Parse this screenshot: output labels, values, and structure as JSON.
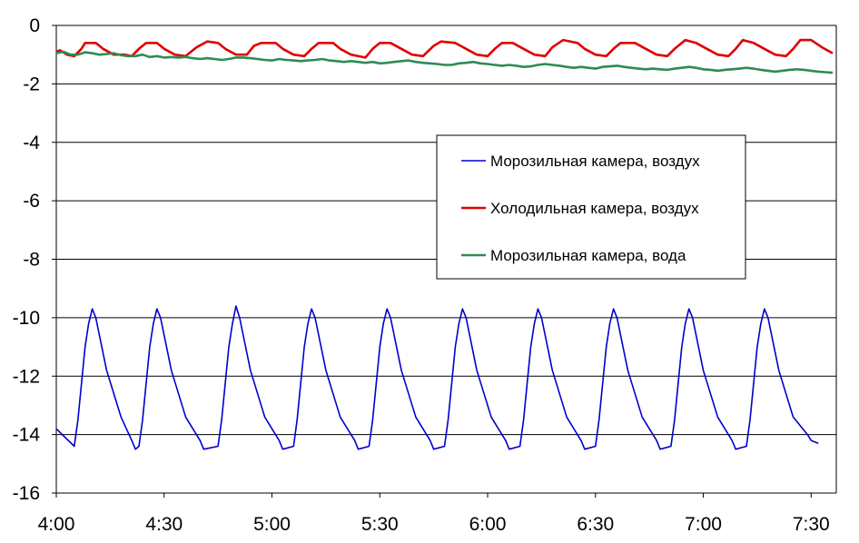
{
  "chart_data": {
    "type": "line",
    "title": "",
    "xlabel": "",
    "ylabel": "",
    "x_range": [
      "4:00",
      "7:37"
    ],
    "ylim": [
      -16,
      0
    ],
    "x_ticks": [
      "4:00",
      "4:30",
      "5:00",
      "5:30",
      "6:00",
      "6:30",
      "7:00",
      "7:30"
    ],
    "y_ticks": [
      "0",
      "-2",
      "-4",
      "-6",
      "-8",
      "-10",
      "-12",
      "-14",
      "-16"
    ],
    "grid": "horizontal",
    "legend": {
      "placement": "right"
    },
    "series": [
      {
        "name": "Морозильная камера, воздух",
        "color": "#0000cc",
        "points": [
          [
            "4:00",
            -13.8
          ],
          [
            "4:05",
            -14.4
          ],
          [
            "4:06",
            -13.5
          ],
          [
            "4:08",
            -11.0
          ],
          [
            "4:09",
            -10.2
          ],
          [
            "4:10",
            -9.7
          ],
          [
            "4:11",
            -10.0
          ],
          [
            "4:14",
            -11.8
          ],
          [
            "4:18",
            -13.4
          ],
          [
            "4:21",
            -14.2
          ],
          [
            "4:22",
            -14.5
          ],
          [
            "4:23",
            -14.4
          ],
          [
            "4:24",
            -13.5
          ],
          [
            "4:26",
            -11.0
          ],
          [
            "4:27",
            -10.2
          ],
          [
            "4:28",
            -9.7
          ],
          [
            "4:29",
            -10.0
          ],
          [
            "4:32",
            -11.8
          ],
          [
            "4:36",
            -13.4
          ],
          [
            "4:40",
            -14.2
          ],
          [
            "4:41",
            -14.5
          ],
          [
            "4:45",
            -14.4
          ],
          [
            "4:46",
            -13.5
          ],
          [
            "4:48",
            -11.0
          ],
          [
            "4:49",
            -10.2
          ],
          [
            "4:50",
            -9.6
          ],
          [
            "4:51",
            -10.0
          ],
          [
            "4:54",
            -11.8
          ],
          [
            "4:58",
            -13.4
          ],
          [
            "5:02",
            -14.2
          ],
          [
            "5:03",
            -14.5
          ],
          [
            "5:06",
            -14.4
          ],
          [
            "5:07",
            -13.5
          ],
          [
            "5:09",
            -11.0
          ],
          [
            "5:10",
            -10.2
          ],
          [
            "5:11",
            -9.7
          ],
          [
            "5:12",
            -10.0
          ],
          [
            "5:15",
            -11.8
          ],
          [
            "5:19",
            -13.4
          ],
          [
            "5:23",
            -14.2
          ],
          [
            "5:24",
            -14.5
          ],
          [
            "5:27",
            -14.4
          ],
          [
            "5:28",
            -13.5
          ],
          [
            "5:30",
            -11.0
          ],
          [
            "5:31",
            -10.2
          ],
          [
            "5:32",
            -9.7
          ],
          [
            "5:33",
            -10.0
          ],
          [
            "5:36",
            -11.8
          ],
          [
            "5:40",
            -13.4
          ],
          [
            "5:44",
            -14.2
          ],
          [
            "5:45",
            -14.5
          ],
          [
            "5:48",
            -14.4
          ],
          [
            "5:49",
            -13.5
          ],
          [
            "5:51",
            -11.0
          ],
          [
            "5:52",
            -10.2
          ],
          [
            "5:53",
            -9.7
          ],
          [
            "5:54",
            -10.0
          ],
          [
            "5:57",
            -11.8
          ],
          [
            "6:01",
            -13.4
          ],
          [
            "6:05",
            -14.2
          ],
          [
            "6:06",
            -14.5
          ],
          [
            "6:09",
            -14.4
          ],
          [
            "6:10",
            -13.5
          ],
          [
            "6:12",
            -11.0
          ],
          [
            "6:13",
            -10.2
          ],
          [
            "6:14",
            -9.7
          ],
          [
            "6:15",
            -10.0
          ],
          [
            "6:18",
            -11.8
          ],
          [
            "6:22",
            -13.4
          ],
          [
            "6:26",
            -14.2
          ],
          [
            "6:27",
            -14.5
          ],
          [
            "6:30",
            -14.4
          ],
          [
            "6:31",
            -13.5
          ],
          [
            "6:33",
            -11.0
          ],
          [
            "6:34",
            -10.2
          ],
          [
            "6:35",
            -9.7
          ],
          [
            "6:36",
            -10.0
          ],
          [
            "6:39",
            -11.8
          ],
          [
            "6:43",
            -13.4
          ],
          [
            "6:47",
            -14.2
          ],
          [
            "6:48",
            -14.5
          ],
          [
            "6:51",
            -14.4
          ],
          [
            "6:52",
            -13.5
          ],
          [
            "6:54",
            -11.0
          ],
          [
            "6:55",
            -10.2
          ],
          [
            "6:56",
            -9.7
          ],
          [
            "6:57",
            -10.0
          ],
          [
            "7:00",
            -11.8
          ],
          [
            "7:04",
            -13.4
          ],
          [
            "7:08",
            -14.2
          ],
          [
            "7:09",
            -14.5
          ],
          [
            "7:12",
            -14.4
          ],
          [
            "7:13",
            -13.5
          ],
          [
            "7:15",
            -11.0
          ],
          [
            "7:16",
            -10.2
          ],
          [
            "7:17",
            -9.7
          ],
          [
            "7:18",
            -10.0
          ],
          [
            "7:21",
            -11.8
          ],
          [
            "7:25",
            -13.4
          ],
          [
            "7:29",
            -14.0
          ],
          [
            "7:30",
            -14.2
          ],
          [
            "7:32",
            -14.3
          ]
        ]
      },
      {
        "name": "Холодильная камера, воздух",
        "color": "#e00000",
        "points": [
          [
            "4:00",
            -0.9
          ],
          [
            "4:01",
            -0.85
          ],
          [
            "4:03",
            -1.0
          ],
          [
            "4:05",
            -1.05
          ],
          [
            "4:07",
            -0.8
          ],
          [
            "4:08",
            -0.6
          ],
          [
            "4:11",
            -0.6
          ],
          [
            "4:13",
            -0.8
          ],
          [
            "4:16",
            -1.0
          ],
          [
            "4:19",
            -1.0
          ],
          [
            "4:21",
            -1.05
          ],
          [
            "4:23",
            -0.8
          ],
          [
            "4:25",
            -0.6
          ],
          [
            "4:28",
            -0.6
          ],
          [
            "4:30",
            -0.8
          ],
          [
            "4:33",
            -1.0
          ],
          [
            "4:36",
            -1.05
          ],
          [
            "4:39",
            -0.75
          ],
          [
            "4:42",
            -0.55
          ],
          [
            "4:45",
            -0.6
          ],
          [
            "4:47",
            -0.8
          ],
          [
            "4:50",
            -1.0
          ],
          [
            "4:53",
            -1.0
          ],
          [
            "4:55",
            -0.7
          ],
          [
            "4:57",
            -0.6
          ],
          [
            "5:01",
            -0.6
          ],
          [
            "5:03",
            -0.8
          ],
          [
            "5:06",
            -1.0
          ],
          [
            "5:09",
            -1.05
          ],
          [
            "5:11",
            -0.8
          ],
          [
            "5:13",
            -0.6
          ],
          [
            "5:17",
            -0.6
          ],
          [
            "5:19",
            -0.8
          ],
          [
            "5:22",
            -1.0
          ],
          [
            "5:26",
            -1.1
          ],
          [
            "5:28",
            -0.8
          ],
          [
            "5:30",
            -0.6
          ],
          [
            "5:33",
            -0.6
          ],
          [
            "5:36",
            -0.8
          ],
          [
            "5:39",
            -1.0
          ],
          [
            "5:42",
            -1.05
          ],
          [
            "5:45",
            -0.7
          ],
          [
            "5:47",
            -0.55
          ],
          [
            "5:51",
            -0.6
          ],
          [
            "5:54",
            -0.8
          ],
          [
            "5:57",
            -1.0
          ],
          [
            "6:00",
            -1.05
          ],
          [
            "6:02",
            -0.8
          ],
          [
            "6:04",
            -0.6
          ],
          [
            "6:07",
            -0.6
          ],
          [
            "6:10",
            -0.8
          ],
          [
            "6:13",
            -1.0
          ],
          [
            "6:16",
            -1.05
          ],
          [
            "6:18",
            -0.75
          ],
          [
            "6:21",
            -0.5
          ],
          [
            "6:25",
            -0.6
          ],
          [
            "6:27",
            -0.8
          ],
          [
            "6:30",
            -1.0
          ],
          [
            "6:33",
            -1.05
          ],
          [
            "6:35",
            -0.8
          ],
          [
            "6:37",
            -0.6
          ],
          [
            "6:41",
            -0.6
          ],
          [
            "6:44",
            -0.8
          ],
          [
            "6:47",
            -1.0
          ],
          [
            "6:50",
            -1.05
          ],
          [
            "6:52",
            -0.8
          ],
          [
            "6:55",
            -0.5
          ],
          [
            "6:58",
            -0.6
          ],
          [
            "7:01",
            -0.8
          ],
          [
            "7:04",
            -1.0
          ],
          [
            "7:07",
            -1.05
          ],
          [
            "7:09",
            -0.8
          ],
          [
            "7:11",
            -0.5
          ],
          [
            "7:14",
            -0.6
          ],
          [
            "7:17",
            -0.8
          ],
          [
            "7:20",
            -1.0
          ],
          [
            "7:23",
            -1.05
          ],
          [
            "7:25",
            -0.8
          ],
          [
            "7:27",
            -0.5
          ],
          [
            "7:30",
            -0.5
          ],
          [
            "7:33",
            -0.75
          ],
          [
            "7:36",
            -0.95
          ]
        ]
      },
      {
        "name": "Морозильная камера, вода",
        "color": "#2e8b57",
        "points": [
          [
            "4:00",
            -0.95
          ],
          [
            "4:02",
            -0.9
          ],
          [
            "4:04",
            -1.0
          ],
          [
            "4:06",
            -1.0
          ],
          [
            "4:08",
            -0.92
          ],
          [
            "4:10",
            -0.95
          ],
          [
            "4:12",
            -1.0
          ],
          [
            "4:14",
            -0.98
          ],
          [
            "4:16",
            -0.95
          ],
          [
            "4:18",
            -1.02
          ],
          [
            "4:20",
            -1.05
          ],
          [
            "4:22",
            -1.05
          ],
          [
            "4:24",
            -1.0
          ],
          [
            "4:26",
            -1.08
          ],
          [
            "4:28",
            -1.05
          ],
          [
            "4:30",
            -1.1
          ],
          [
            "4:32",
            -1.08
          ],
          [
            "4:34",
            -1.1
          ],
          [
            "4:36",
            -1.08
          ],
          [
            "4:38",
            -1.12
          ],
          [
            "4:40",
            -1.15
          ],
          [
            "4:42",
            -1.12
          ],
          [
            "4:44",
            -1.15
          ],
          [
            "4:46",
            -1.18
          ],
          [
            "4:48",
            -1.15
          ],
          [
            "4:50",
            -1.1
          ],
          [
            "4:52",
            -1.1
          ],
          [
            "4:54",
            -1.12
          ],
          [
            "4:56",
            -1.15
          ],
          [
            "4:58",
            -1.18
          ],
          [
            "5:00",
            -1.2
          ],
          [
            "5:02",
            -1.15
          ],
          [
            "5:04",
            -1.18
          ],
          [
            "5:06",
            -1.2
          ],
          [
            "5:08",
            -1.22
          ],
          [
            "5:10",
            -1.2
          ],
          [
            "5:12",
            -1.18
          ],
          [
            "5:14",
            -1.15
          ],
          [
            "5:16",
            -1.2
          ],
          [
            "5:18",
            -1.22
          ],
          [
            "5:20",
            -1.25
          ],
          [
            "5:22",
            -1.22
          ],
          [
            "5:24",
            -1.25
          ],
          [
            "5:26",
            -1.28
          ],
          [
            "5:28",
            -1.25
          ],
          [
            "5:30",
            -1.3
          ],
          [
            "5:32",
            -1.28
          ],
          [
            "5:34",
            -1.25
          ],
          [
            "5:36",
            -1.22
          ],
          [
            "5:38",
            -1.2
          ],
          [
            "5:40",
            -1.25
          ],
          [
            "5:42",
            -1.28
          ],
          [
            "5:44",
            -1.3
          ],
          [
            "5:46",
            -1.32
          ],
          [
            "5:48",
            -1.35
          ],
          [
            "5:50",
            -1.35
          ],
          [
            "5:52",
            -1.3
          ],
          [
            "5:54",
            -1.28
          ],
          [
            "5:56",
            -1.25
          ],
          [
            "5:58",
            -1.3
          ],
          [
            "6:00",
            -1.32
          ],
          [
            "6:02",
            -1.35
          ],
          [
            "6:04",
            -1.38
          ],
          [
            "6:06",
            -1.35
          ],
          [
            "6:08",
            -1.38
          ],
          [
            "6:10",
            -1.42
          ],
          [
            "6:12",
            -1.4
          ],
          [
            "6:14",
            -1.35
          ],
          [
            "6:16",
            -1.32
          ],
          [
            "6:18",
            -1.35
          ],
          [
            "6:20",
            -1.38
          ],
          [
            "6:22",
            -1.42
          ],
          [
            "6:24",
            -1.45
          ],
          [
            "6:26",
            -1.42
          ],
          [
            "6:28",
            -1.45
          ],
          [
            "6:30",
            -1.48
          ],
          [
            "6:32",
            -1.42
          ],
          [
            "6:34",
            -1.4
          ],
          [
            "6:36",
            -1.38
          ],
          [
            "6:38",
            -1.42
          ],
          [
            "6:40",
            -1.45
          ],
          [
            "6:42",
            -1.48
          ],
          [
            "6:44",
            -1.5
          ],
          [
            "6:46",
            -1.48
          ],
          [
            "6:48",
            -1.5
          ],
          [
            "6:50",
            -1.52
          ],
          [
            "6:52",
            -1.48
          ],
          [
            "6:54",
            -1.45
          ],
          [
            "6:56",
            -1.42
          ],
          [
            "6:58",
            -1.45
          ],
          [
            "7:00",
            -1.5
          ],
          [
            "7:02",
            -1.52
          ],
          [
            "7:04",
            -1.55
          ],
          [
            "7:06",
            -1.52
          ],
          [
            "7:08",
            -1.5
          ],
          [
            "7:10",
            -1.48
          ],
          [
            "7:12",
            -1.45
          ],
          [
            "7:14",
            -1.48
          ],
          [
            "7:16",
            -1.52
          ],
          [
            "7:18",
            -1.55
          ],
          [
            "7:20",
            -1.58
          ],
          [
            "7:22",
            -1.55
          ],
          [
            "7:24",
            -1.52
          ],
          [
            "7:26",
            -1.5
          ],
          [
            "7:28",
            -1.52
          ],
          [
            "7:30",
            -1.55
          ],
          [
            "7:32",
            -1.58
          ],
          [
            "7:34",
            -1.6
          ],
          [
            "7:36",
            -1.62
          ]
        ]
      }
    ]
  }
}
